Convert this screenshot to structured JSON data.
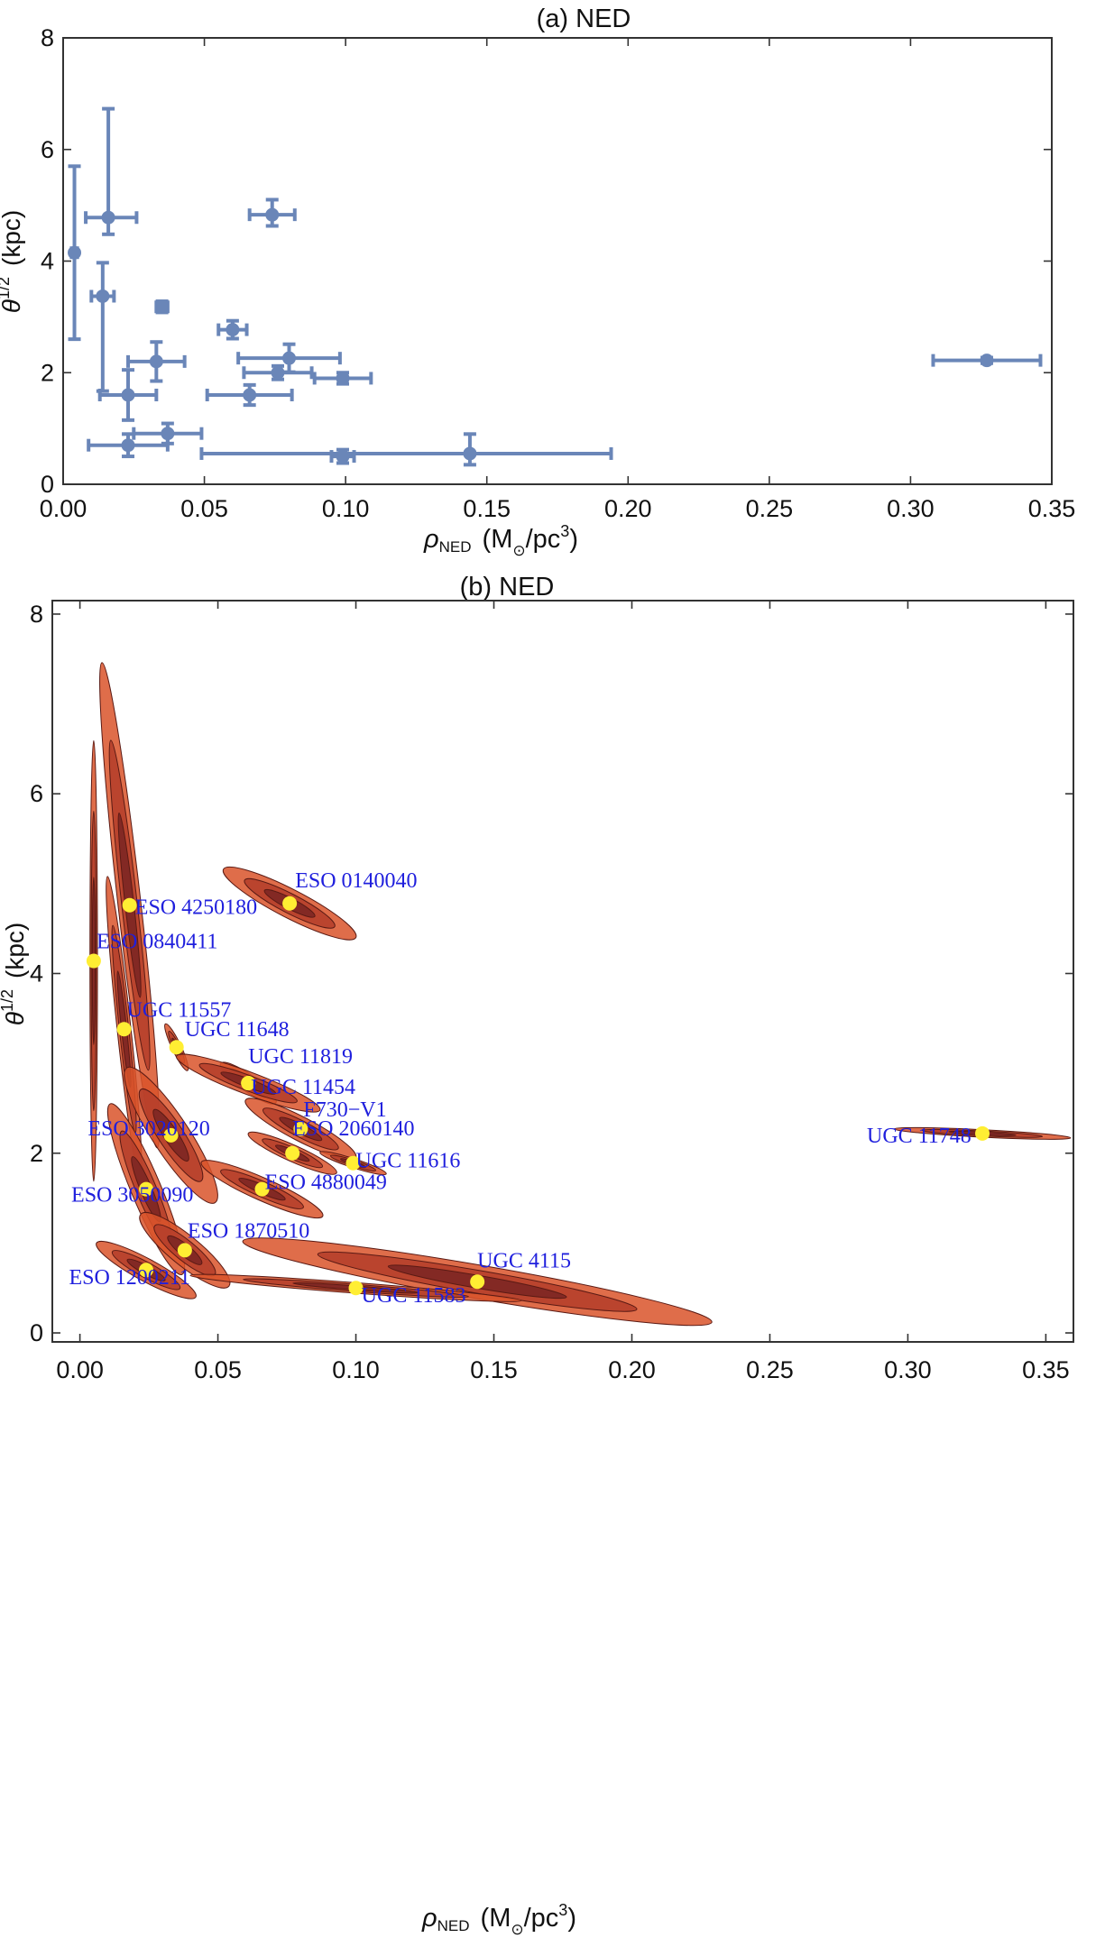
{
  "chart_data": [
    {
      "type": "scatter",
      "title": "(a)  NED",
      "xlabel": {
        "main": "ρ",
        "sub": "NED",
        "unit_pre": "(M",
        "unit_sub": "⊙",
        "unit_post": "/pc",
        "unit_sup": "3",
        "unit_close": ")"
      },
      "ylabel": {
        "main": "θ",
        "sup": "1/2",
        "unit": "(kpc)"
      },
      "xlim": [
        0,
        0.35
      ],
      "ylim": [
        0,
        8
      ],
      "xticks": [
        0.0,
        0.05,
        0.1,
        0.15,
        0.2,
        0.25,
        0.3,
        0.35
      ],
      "yticks": [
        0,
        2,
        4,
        6,
        8
      ],
      "xtick_labels": [
        "0.00",
        "0.05",
        "0.10",
        "0.15",
        "0.20",
        "0.25",
        "0.30",
        "0.35"
      ],
      "ytick_labels": [
        "0",
        "2",
        "4",
        "6",
        "8"
      ],
      "grid": false,
      "color": "#6a86b8",
      "points": [
        {
          "x": 0.004,
          "y": 4.15,
          "xerr": [
            0.001,
            0.001
          ],
          "yerr": [
            1.55,
            1.55
          ]
        },
        {
          "x": 0.016,
          "y": 4.78,
          "xerr": [
            0.008,
            0.01
          ],
          "yerr": [
            0.3,
            1.95
          ]
        },
        {
          "x": 0.014,
          "y": 3.37,
          "xerr": [
            0.004,
            0.004
          ],
          "yerr": [
            1.7,
            0.6
          ]
        },
        {
          "x": 0.074,
          "y": 4.83,
          "xerr": [
            0.008,
            0.008
          ],
          "yerr": [
            0.2,
            0.27
          ]
        },
        {
          "x": 0.035,
          "y": 3.18,
          "xerr": [
            0.002,
            0.002
          ],
          "yerr": [
            0.1,
            0.1
          ]
        },
        {
          "x": 0.06,
          "y": 2.77,
          "xerr": [
            0.005,
            0.005
          ],
          "yerr": [
            0.16,
            0.16
          ]
        },
        {
          "x": 0.033,
          "y": 2.2,
          "xerr": [
            0.01,
            0.01
          ],
          "yerr": [
            0.35,
            0.35
          ]
        },
        {
          "x": 0.08,
          "y": 2.26,
          "xerr": [
            0.018,
            0.018
          ],
          "yerr": [
            0.25,
            0.25
          ]
        },
        {
          "x": 0.076,
          "y": 2.0,
          "xerr": [
            0.012,
            0.012
          ],
          "yerr": [
            0.12,
            0.12
          ]
        },
        {
          "x": 0.099,
          "y": 1.9,
          "xerr": [
            0.01,
            0.01
          ],
          "yerr": [
            0.1,
            0.1
          ]
        },
        {
          "x": 0.023,
          "y": 1.6,
          "xerr": [
            0.01,
            0.01
          ],
          "yerr": [
            0.45,
            0.45
          ]
        },
        {
          "x": 0.066,
          "y": 1.6,
          "xerr": [
            0.015,
            0.015
          ],
          "yerr": [
            0.18,
            0.18
          ]
        },
        {
          "x": 0.327,
          "y": 2.22,
          "xerr": [
            0.019,
            0.019
          ],
          "yerr": [
            0.05,
            0.05
          ]
        },
        {
          "x": 0.037,
          "y": 0.91,
          "xerr": [
            0.012,
            0.012
          ],
          "yerr": [
            0.18,
            0.18
          ]
        },
        {
          "x": 0.023,
          "y": 0.7,
          "xerr": [
            0.014,
            0.014
          ],
          "yerr": [
            0.2,
            0.2
          ]
        },
        {
          "x": 0.099,
          "y": 0.5,
          "xerr": [
            0.004,
            0.004
          ],
          "yerr": [
            0.12,
            0.12
          ]
        },
        {
          "x": 0.144,
          "y": 0.55,
          "xerr": [
            0.095,
            0.05
          ],
          "yerr": [
            0.2,
            0.35
          ]
        }
      ]
    },
    {
      "type": "scatter",
      "title": "(b)  NED",
      "xlabel": {
        "main": "ρ",
        "sub": "NED",
        "unit_pre": "(M",
        "unit_sub": "⊙",
        "unit_post": "/pc",
        "unit_sup": "3",
        "unit_close": ")"
      },
      "ylabel": {
        "main": "θ",
        "sup": "1/2",
        "unit": "(kpc)"
      },
      "xlim": [
        -0.01,
        0.36
      ],
      "ylim": [
        -0.1,
        8.15
      ],
      "xticks": [
        0.0,
        0.05,
        0.1,
        0.15,
        0.2,
        0.25,
        0.3,
        0.35
      ],
      "yticks": [
        0,
        2,
        4,
        6,
        8
      ],
      "xtick_labels": [
        "0.00",
        "0.05",
        "0.10",
        "0.15",
        "0.20",
        "0.25",
        "0.30",
        "0.35"
      ],
      "ytick_labels": [
        "0",
        "2",
        "4",
        "6",
        "8"
      ],
      "grid": false,
      "point_color": "#ffee33",
      "contour_colors": [
        "#d9532a",
        "#b63f2b",
        "#7d2723"
      ],
      "galaxies": [
        {
          "name": "ESO 0140040",
          "x": 0.076,
          "y": 4.78,
          "rx": 0.024,
          "ry": 0.38,
          "tilt": 1,
          "label_dx": 0.002,
          "label_dy": 0.18,
          "anchor": "start"
        },
        {
          "name": "ESO 4250180",
          "x": 0.018,
          "y": 4.76,
          "rx": 0.01,
          "ry": 2.7,
          "tilt": 1,
          "label_dx": 0.002,
          "label_dy": -0.1,
          "anchor": "start"
        },
        {
          "name": "ESO 0840411",
          "x": 0.005,
          "y": 4.14,
          "rx": 0.003,
          "ry": 2.45,
          "tilt": 0,
          "label_dx": 0.001,
          "label_dy": 0.14,
          "anchor": "start"
        },
        {
          "name": "UGC 11557",
          "x": 0.016,
          "y": 3.38,
          "rx": 0.006,
          "ry": 1.7,
          "tilt": 1,
          "label_dx": 0.001,
          "label_dy": 0.14,
          "anchor": "start"
        },
        {
          "name": "UGC 11648",
          "x": 0.035,
          "y": 3.18,
          "rx": 0.004,
          "ry": 0.26,
          "tilt": 1,
          "label_dx": 0.003,
          "label_dy": 0.12,
          "anchor": "start"
        },
        {
          "name": "UGC 11819",
          "x": 0.061,
          "y": 2.78,
          "rx": 0.01,
          "ry": 0.22,
          "tilt": 1,
          "label_dx": 0.0,
          "label_dy": 0.22,
          "anchor": "start"
        },
        {
          "name": "UGC 11454",
          "x": 0.061,
          "y": 2.78,
          "rx": 0.026,
          "ry": 0.3,
          "tilt": 1,
          "label_dx": 0.001,
          "label_dy": -0.12,
          "anchor": "start"
        },
        {
          "name": "ESO 3020120",
          "x": 0.033,
          "y": 2.2,
          "rx": 0.016,
          "ry": 0.75,
          "tilt": 1,
          "label_dx": -0.008,
          "label_dy": 0.0,
          "anchor": "middle"
        },
        {
          "name": "F730−V1",
          "x": 0.08,
          "y": 2.27,
          "rx": 0.02,
          "ry": 0.32,
          "tilt": 1,
          "label_dx": 0.001,
          "label_dy": 0.14,
          "anchor": "start"
        },
        {
          "name": "ESO 2060140",
          "x": 0.077,
          "y": 2.0,
          "rx": 0.016,
          "ry": 0.22,
          "tilt": 1,
          "label_dx": 0.0,
          "label_dy": 0.2,
          "anchor": "start"
        },
        {
          "name": "UGC 11616",
          "x": 0.099,
          "y": 1.89,
          "rx": 0.012,
          "ry": 0.12,
          "tilt": 1,
          "label_dx": 0.001,
          "label_dy": -0.05,
          "anchor": "start"
        },
        {
          "name": "UGC 11748",
          "x": 0.327,
          "y": 2.22,
          "rx": 0.032,
          "ry": 0.05,
          "tilt": 1,
          "label_dx": -0.004,
          "label_dy": -0.1,
          "anchor": "end"
        },
        {
          "name": "ESO 3050090",
          "x": 0.024,
          "y": 1.6,
          "rx": 0.013,
          "ry": 0.95,
          "tilt": 1,
          "label_dx": -0.005,
          "label_dy": -0.14,
          "anchor": "middle"
        },
        {
          "name": "ESO 4880049",
          "x": 0.066,
          "y": 1.6,
          "rx": 0.022,
          "ry": 0.3,
          "tilt": 1,
          "label_dx": 0.001,
          "label_dy": 0.0,
          "anchor": "start"
        },
        {
          "name": "ESO 1870510",
          "x": 0.038,
          "y": 0.92,
          "rx": 0.016,
          "ry": 0.4,
          "tilt": 1,
          "label_dx": 0.001,
          "label_dy": 0.14,
          "anchor": "start"
        },
        {
          "name": "UGC 4115",
          "x": 0.144,
          "y": 0.57,
          "rx": 0.085,
          "ry": 0.45,
          "tilt": 1,
          "label_dx": 0.0,
          "label_dy": 0.16,
          "anchor": "start"
        },
        {
          "name": "ESO 1200211",
          "x": 0.024,
          "y": 0.7,
          "rx": 0.018,
          "ry": 0.3,
          "tilt": 1,
          "label_dx": -0.006,
          "label_dy": -0.16,
          "anchor": "middle"
        },
        {
          "name": "UGC 11583",
          "x": 0.1,
          "y": 0.5,
          "rx": 0.06,
          "ry": 0.14,
          "tilt": 1,
          "label_dx": 0.002,
          "label_dy": -0.16,
          "anchor": "start"
        }
      ]
    }
  ]
}
